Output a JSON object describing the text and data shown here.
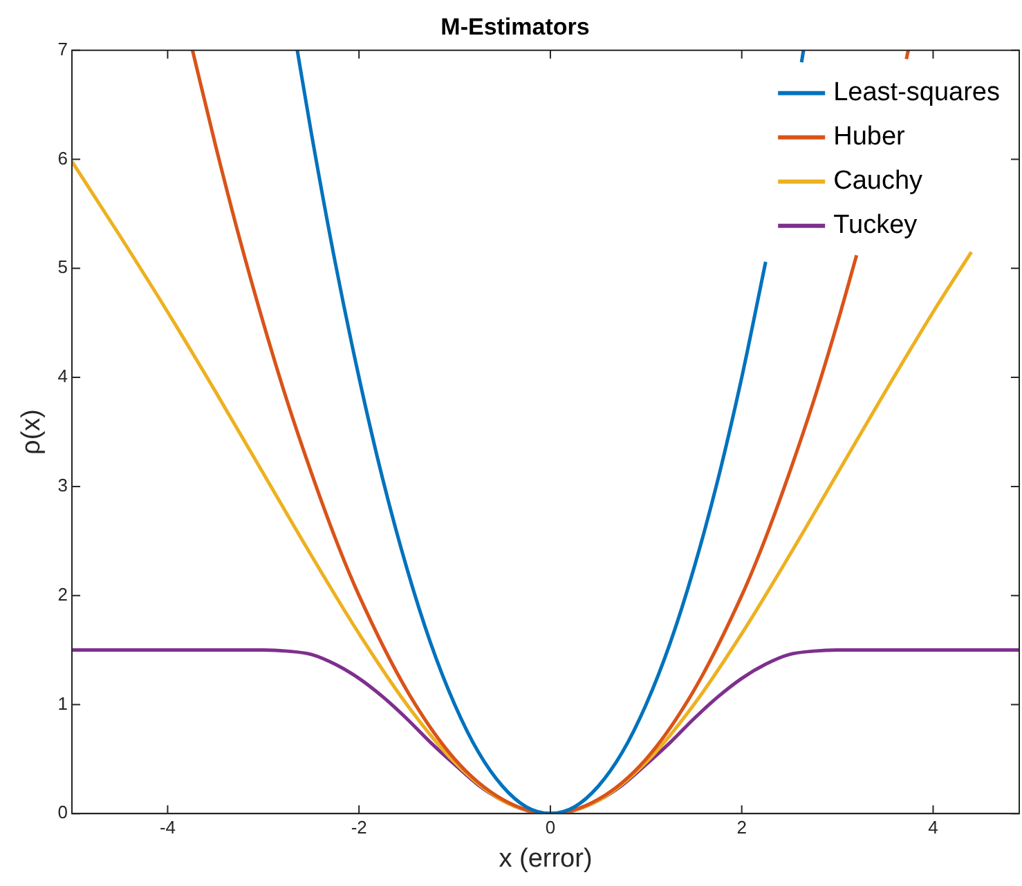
{
  "chart_data": {
    "type": "line",
    "title": "M-Estimators",
    "xlabel": "x (error)",
    "ylabel": "ρ(x)",
    "xlim": [
      -5,
      4.9
    ],
    "ylim": [
      0,
      7
    ],
    "xticks": [
      -4,
      -2,
      0,
      2,
      4
    ],
    "yticks": [
      0,
      1,
      2,
      3,
      4,
      5,
      6,
      7
    ],
    "grid": false,
    "legend": "top right",
    "series": [
      {
        "name": "Least-squares",
        "color": "#0072bd",
        "x": [
          -2.645,
          -2.5,
          -2.25,
          -2,
          -1.75,
          -1.5,
          -1.25,
          -1,
          -0.75,
          -0.5,
          -0.25,
          0,
          0.25,
          0.5,
          0.75,
          1,
          1.25,
          1.5,
          1.75,
          2,
          2.25,
          2.5,
          2.625,
          2.645
        ],
        "values": [
          7,
          6.25,
          5.06,
          4,
          3.06,
          2.25,
          1.56,
          1,
          0.56,
          0.25,
          0.06,
          0,
          0.06,
          0.25,
          0.56,
          1,
          1.56,
          2.25,
          3.06,
          4,
          5.06,
          null,
          6.89,
          7
        ]
      },
      {
        "name": "Huber",
        "color": "#d95319",
        "x": [
          -3.74,
          -3.5,
          -3.25,
          -3,
          -2.75,
          -2.5,
          -2.25,
          -2,
          -1.5,
          -1,
          -0.5,
          0,
          0.5,
          1,
          1.5,
          2,
          2.25,
          2.5,
          2.75,
          3,
          3.2,
          3.5,
          3.72,
          3.74
        ],
        "values": [
          7,
          6.13,
          5.28,
          4.5,
          3.78,
          3.13,
          2.53,
          2,
          1.13,
          0.5,
          0.13,
          0,
          0.13,
          0.5,
          1.13,
          2,
          2.53,
          3.13,
          3.78,
          4.5,
          5.12,
          null,
          6.92,
          7
        ]
      },
      {
        "name": "Cauchy",
        "color": "#edb120",
        "x": [
          -5,
          -4.5,
          -4,
          -3.5,
          -3,
          -2.5,
          -2,
          -1.5,
          -1,
          -0.5,
          0,
          0.5,
          1,
          1.5,
          2,
          2.5,
          3,
          3.5,
          4,
          4.4
        ],
        "values": [
          5.98,
          5.3,
          4.6,
          3.87,
          3.12,
          2.37,
          1.65,
          1,
          0.47,
          0.12,
          0,
          0.12,
          0.47,
          1,
          1.65,
          2.37,
          3.12,
          3.87,
          4.6,
          5.15
        ]
      },
      {
        "name": "Tuckey",
        "color": "#7e2f8e",
        "x": [
          -5,
          -3,
          -2.75,
          -2.5,
          -2.25,
          -2,
          -1.75,
          -1.5,
          -1.25,
          -1,
          -0.75,
          -0.5,
          -0.25,
          0,
          0.25,
          0.5,
          0.75,
          1,
          1.25,
          1.5,
          1.75,
          2,
          2.25,
          2.5,
          2.75,
          3,
          4.9
        ],
        "values": [
          1.5,
          1.5,
          1.49,
          1.46,
          1.37,
          1.24,
          1.07,
          0.87,
          0.65,
          0.45,
          0.26,
          0.12,
          0.03,
          0,
          0.03,
          0.12,
          0.26,
          0.45,
          0.65,
          0.87,
          1.07,
          1.24,
          1.37,
          1.46,
          1.49,
          1.5,
          1.5
        ]
      }
    ]
  }
}
